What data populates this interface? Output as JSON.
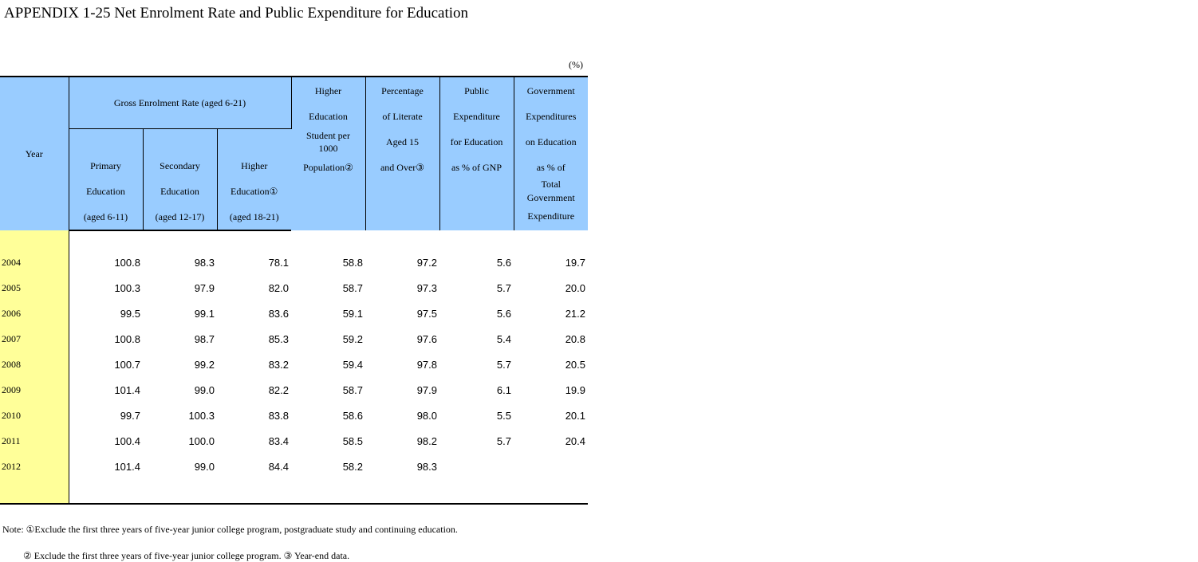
{
  "title": "APPENDIX 1-25 Net Enrolment Rate and Public Expenditure for Education",
  "unit": "(%)",
  "headers": {
    "year": "Year",
    "gross": "Gross Enrolment Rate (aged 6-21)",
    "primary": [
      "Primary",
      "Education",
      "(aged 6-11)"
    ],
    "secondary": [
      "Secondary",
      "Education",
      "(aged 12-17)"
    ],
    "higher": [
      "Higher",
      "Education①",
      "(aged 18-21)"
    ],
    "students": [
      "Higher",
      "Education",
      "Student per",
      "1000",
      "Population②"
    ],
    "literate": [
      "Percentage",
      "of Literate",
      "Aged 15",
      "and Over③"
    ],
    "public_exp": [
      "Public",
      "Expenditure",
      "for Education",
      "as % of GNP"
    ],
    "gov_exp": [
      "Government",
      "Expenditures",
      "on Education",
      "as % of",
      "Total",
      "Government",
      "Expenditure"
    ]
  },
  "rows": [
    {
      "year": "2004",
      "primary": "100.8",
      "secondary": "98.3",
      "higher": "78.1",
      "students": "58.8",
      "literate": "97.2",
      "public": "5.6",
      "gov": "19.7"
    },
    {
      "year": "2005",
      "primary": "100.3",
      "secondary": "97.9",
      "higher": "82.0",
      "students": "58.7",
      "literate": "97.3",
      "public": "5.7",
      "gov": "20.0"
    },
    {
      "year": "2006",
      "primary": "99.5",
      "secondary": "99.1",
      "higher": "83.6",
      "students": "59.1",
      "literate": "97.5",
      "public": "5.6",
      "gov": "21.2"
    },
    {
      "year": "2007",
      "primary": "100.8",
      "secondary": "98.7",
      "higher": "85.3",
      "students": "59.2",
      "literate": "97.6",
      "public": "5.4",
      "gov": "20.8"
    },
    {
      "year": "2008",
      "primary": "100.7",
      "secondary": "99.2",
      "higher": "83.2",
      "students": "59.4",
      "literate": "97.8",
      "public": "5.7",
      "gov": "20.5"
    },
    {
      "year": "2009",
      "primary": "101.4",
      "secondary": "99.0",
      "higher": "82.2",
      "students": "58.7",
      "literate": "97.9",
      "public": "6.1",
      "gov": "19.9"
    },
    {
      "year": "2010",
      "primary": "99.7",
      "secondary": "100.3",
      "higher": "83.8",
      "students": "58.6",
      "literate": "98.0",
      "public": "5.5",
      "gov": "20.1"
    },
    {
      "year": "2011",
      "primary": "100.4",
      "secondary": "100.0",
      "higher": "83.4",
      "students": "58.5",
      "literate": "98.2",
      "public": "5.7",
      "gov": "20.4"
    },
    {
      "year": "2012",
      "primary": "101.4",
      "secondary": "99.0",
      "higher": "84.4",
      "students": "58.2",
      "literate": "98.3",
      "public": "",
      "gov": ""
    }
  ],
  "notes": [
    "Note: ①Exclude the first three years of five-year junior college program, postgraduate study and continuing education.",
    "② Exclude the first three years of five-year junior college program.  ③ Year-end data."
  ],
  "colors": {
    "header_bg": "#99ccff",
    "year_bg": "#ffff99"
  }
}
